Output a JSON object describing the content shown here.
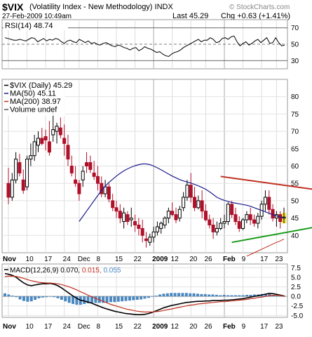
{
  "header": {
    "symbol": "$VIX",
    "name": "(Volatility Index - New Methodology) INDX",
    "date": "27-Feb-2009 10:49am",
    "last": "Last 45.29",
    "change": "Chg +0.63 (+1.41%)",
    "watermark": "© StockCharts.com"
  },
  "colors": {
    "up": "#000000",
    "down": "#b0102a",
    "ma50": "#1c1c8c",
    "ma200": "#c03020",
    "resistance": "#c03020",
    "support": "#1a9a1a",
    "macd": "#000000",
    "signal": "#c03020",
    "histogram": "#4a88c0",
    "highlight": "#f3e64a"
  },
  "chart_data": [
    {
      "type": "line",
      "panel": "RSI",
      "legend": "RSI(14) 48.74",
      "ylim": [
        20,
        80
      ],
      "ticks": [
        30,
        50,
        70
      ],
      "reference_levels": [
        30,
        50,
        70
      ],
      "values": [
        58,
        57,
        56,
        55,
        55,
        56,
        55,
        54,
        56,
        58,
        57,
        53,
        55,
        57,
        54,
        56,
        55,
        57,
        56,
        53,
        51,
        54,
        55,
        53,
        52,
        56,
        54,
        52,
        54,
        51,
        52,
        50,
        49,
        51,
        52,
        50,
        48,
        47,
        49,
        48,
        46,
        45,
        43,
        45,
        46,
        42,
        44,
        47,
        45,
        44,
        42,
        40,
        41,
        38,
        36,
        35,
        38,
        40,
        41,
        43,
        46,
        48,
        50,
        52,
        54,
        56,
        53,
        55,
        55,
        58,
        56,
        52,
        53,
        57,
        58,
        56,
        59,
        60,
        53,
        48,
        51,
        53,
        49,
        51,
        54,
        56,
        52,
        55,
        58,
        51,
        52,
        58,
        52,
        48,
        49
      ]
    },
    {
      "type": "candlestick",
      "panel": "price",
      "legend": [
        "$VIX (Daily) 45.29",
        "MA(50) 45.11",
        "MA(200) 38.97",
        "Volume undef"
      ],
      "ylim": [
        35,
        85
      ],
      "ticks": [
        40,
        45,
        50,
        55,
        60,
        65,
        70,
        75,
        80
      ],
      "x_ticks": [
        "Nov",
        "10",
        "17",
        "24",
        "Dec",
        "8",
        "15",
        "22",
        "2009",
        "12",
        "20",
        "26",
        "Feb",
        "9",
        "17",
        "23"
      ],
      "ohlc": [
        [
          55.0,
          59.5,
          49.0,
          51.0
        ],
        [
          51.0,
          58.0,
          50.0,
          56.0
        ],
        [
          56.0,
          64.0,
          55.0,
          62.0
        ],
        [
          61.0,
          63.5,
          57.0,
          58.0
        ],
        [
          56.0,
          59.0,
          52.0,
          53.0
        ],
        [
          54.0,
          63.0,
          53.0,
          62.0
        ],
        [
          62.0,
          66.5,
          60.0,
          63.0
        ],
        [
          63.0,
          69.0,
          61.5,
          67.0
        ],
        [
          66.0,
          70.0,
          64.0,
          68.0
        ],
        [
          68.0,
          71.0,
          66.0,
          66.5
        ],
        [
          68.5,
          70.5,
          64.5,
          67.5
        ],
        [
          67.0,
          73.0,
          63.0,
          64.0
        ],
        [
          69.0,
          76.0,
          67.0,
          70.5
        ],
        [
          70.0,
          72.5,
          66.5,
          71.5
        ],
        [
          71.0,
          74.0,
          68.0,
          69.0
        ],
        [
          68.0,
          72.0,
          63.0,
          66.5
        ],
        [
          66.0,
          69.0,
          60.0,
          62.0
        ],
        [
          60.0,
          63.0,
          57.0,
          58.0
        ],
        [
          56.0,
          60.0,
          54.0,
          55.0
        ],
        [
          55.0,
          56.0,
          50.0,
          52.0
        ],
        [
          56.0,
          60.0,
          54.0,
          58.5
        ],
        [
          61.0,
          64.0,
          58.0,
          60.0
        ],
        [
          61.0,
          63.0,
          58.0,
          59.0
        ],
        [
          58.0,
          61.5,
          56.0,
          57.0
        ],
        [
          57.0,
          60.0,
          53.0,
          55.0
        ],
        [
          55.0,
          57.0,
          51.0,
          52.0
        ],
        [
          52.0,
          56.0,
          51.0,
          54.0
        ],
        [
          54.0,
          55.0,
          49.5,
          50.5
        ],
        [
          50.0,
          52.0,
          47.0,
          48.0
        ],
        [
          48.0,
          50.0,
          45.0,
          47.0
        ],
        [
          47.0,
          49.0,
          43.5,
          45.0
        ],
        [
          44.0,
          48.0,
          42.0,
          46.5
        ],
        [
          46.0,
          47.0,
          43.0,
          44.0
        ],
        [
          44.5,
          48.0,
          42.5,
          45.0
        ],
        [
          44.0,
          46.0,
          41.0,
          43.0
        ],
        [
          43.0,
          45.0,
          40.0,
          42.0
        ],
        [
          42.0,
          44.5,
          38.0,
          40.0
        ],
        [
          39.0,
          41.0,
          36.5,
          38.5
        ],
        [
          38.0,
          40.5,
          37.0,
          39.5
        ],
        [
          39.5,
          42.5,
          38.0,
          41.0
        ],
        [
          41.0,
          44.0,
          40.0,
          42.5
        ],
        [
          42.0,
          44.0,
          40.5,
          43.5
        ],
        [
          43.0,
          45.5,
          42.0,
          45.0
        ],
        [
          45.0,
          48.0,
          43.5,
          47.0
        ],
        [
          47.0,
          49.5,
          45.5,
          46.0
        ],
        [
          46.0,
          48.0,
          43.5,
          44.5
        ],
        [
          45.0,
          48.5,
          44.0,
          47.5
        ],
        [
          48.0,
          52.5,
          47.0,
          51.0
        ],
        [
          51.0,
          56.0,
          50.0,
          54.5
        ],
        [
          54.5,
          58.0,
          49.5,
          51.0
        ],
        [
          51.0,
          54.0,
          47.0,
          48.0
        ],
        [
          48.0,
          51.5,
          47.5,
          50.0
        ],
        [
          50.0,
          53.0,
          45.0,
          47.0
        ],
        [
          47.0,
          49.0,
          44.0,
          44.5
        ],
        [
          44.5,
          46.0,
          42.0,
          43.0
        ],
        [
          43.0,
          45.0,
          39.0,
          41.0
        ],
        [
          41.0,
          44.0,
          40.0,
          42.0
        ],
        [
          42.0,
          45.0,
          41.5,
          43.5
        ],
        [
          43.5,
          46.0,
          42.0,
          44.0
        ],
        [
          44.0,
          49.5,
          43.0,
          49.0
        ],
        [
          49.0,
          50.0,
          45.0,
          46.0
        ],
        [
          46.0,
          48.0,
          43.0,
          44.0
        ],
        [
          44.0,
          45.5,
          41.0,
          42.0
        ],
        [
          42.0,
          45.0,
          41.5,
          44.5
        ],
        [
          44.5,
          47.0,
          43.5,
          46.0
        ],
        [
          46.0,
          48.0,
          43.0,
          44.5
        ],
        [
          44.5,
          46.0,
          42.5,
          43.5
        ],
        [
          43.5,
          46.5,
          42.0,
          45.5
        ],
        [
          45.5,
          50.0,
          44.5,
          49.0
        ],
        [
          49.0,
          53.0,
          47.0,
          51.0
        ],
        [
          51.0,
          53.0,
          46.0,
          47.5
        ],
        [
          47.5,
          49.0,
          44.0,
          45.0
        ],
        [
          45.0,
          47.0,
          42.5,
          46.0
        ],
        [
          46.0,
          47.0,
          42.0,
          44.0
        ],
        [
          45.0,
          48.0,
          43.5,
          45.29
        ]
      ],
      "ma50": [
        44.0,
        45.5,
        47.0,
        48.5,
        50.0,
        51.5,
        53.0,
        54.2,
        55.3,
        56.2,
        57.1,
        57.9,
        58.6,
        59.2,
        59.7,
        60.1,
        60.4,
        60.6,
        60.6,
        60.4,
        60.0,
        59.5,
        58.9,
        58.3,
        57.7,
        57.1,
        56.6,
        56.1,
        55.7,
        55.4,
        55.1,
        54.7,
        54.3,
        53.8,
        53.3,
        52.6,
        51.8,
        51.0,
        50.5,
        50.1,
        49.8,
        49.5,
        49.3,
        49.1,
        48.9,
        48.7,
        48.4,
        48.0,
        47.6,
        47.2,
        46.8,
        46.4,
        46.0,
        45.6,
        45.3,
        45.1
      ],
      "ma200": [
        34.0,
        34.5,
        35.0,
        35.5,
        36.0,
        36.5,
        37.0,
        37.5,
        38.0,
        38.4,
        38.97
      ],
      "resistance": [
        [
          57,
          57.0
        ],
        [
          89,
          52.0
        ]
      ],
      "support": [
        [
          60,
          38.0
        ],
        [
          89,
          44.0
        ]
      ]
    },
    {
      "type": "line",
      "panel": "MACD",
      "legend": [
        "MACD(12,26,9)",
        "0.070",
        "0.015",
        "0.055"
      ],
      "ylim": [
        -5.5,
        8.5
      ],
      "ticks": [
        -5.0,
        -2.5,
        0.0,
        2.5,
        5.0,
        7.5
      ],
      "macd": [
        6.0,
        5.8,
        5.5,
        5.0,
        4.2,
        3.5,
        3.0,
        2.8,
        3.0,
        3.2,
        3.3,
        3.3,
        3.4,
        3.2,
        2.8,
        2.2,
        1.5,
        0.8,
        0.1,
        -0.5,
        -1.0,
        -1.2,
        -1.5,
        -1.8,
        -2.2,
        -2.6,
        -3.0,
        -3.3,
        -3.6,
        -3.9,
        -4.1,
        -4.3,
        -4.5,
        -4.6,
        -4.7,
        -4.8,
        -4.8,
        -4.7,
        -4.5,
        -4.2,
        -3.8,
        -3.4,
        -3.0,
        -2.7,
        -2.4,
        -2.2,
        -2.0,
        -1.8,
        -1.6,
        -1.5,
        -1.4,
        -1.3,
        -1.3,
        -1.2,
        -1.2,
        -1.1,
        -1.1,
        -1.1,
        -1.0,
        -1.0,
        -0.9,
        -0.8,
        -0.7,
        -0.6,
        -0.4,
        -0.2,
        0.0,
        0.2,
        0.4,
        0.6,
        0.8,
        0.7,
        0.5,
        0.3,
        0.07
      ],
      "signal": [
        5.2,
        5.3,
        5.3,
        5.2,
        5.0,
        4.7,
        4.4,
        4.1,
        3.9,
        3.7,
        3.6,
        3.5,
        3.5,
        3.4,
        3.3,
        3.1,
        2.8,
        2.5,
        2.1,
        1.7,
        1.2,
        0.8,
        0.3,
        -0.1,
        -0.5,
        -0.9,
        -1.3,
        -1.7,
        -2.1,
        -2.4,
        -2.7,
        -3.0,
        -3.3,
        -3.5,
        -3.7,
        -3.9,
        -4.0,
        -4.1,
        -4.1,
        -4.1,
        -4.0,
        -3.9,
        -3.7,
        -3.5,
        -3.3,
        -3.1,
        -2.9,
        -2.7,
        -2.5,
        -2.3,
        -2.2,
        -2.0,
        -1.9,
        -1.8,
        -1.7,
        -1.6,
        -1.5,
        -1.4,
        -1.4,
        -1.3,
        -1.2,
        -1.1,
        -1.0,
        -0.9,
        -0.8,
        -0.6,
        -0.5,
        -0.3,
        -0.2,
        0.0,
        0.2,
        0.3,
        0.3,
        0.2,
        0.015
      ]
    }
  ]
}
